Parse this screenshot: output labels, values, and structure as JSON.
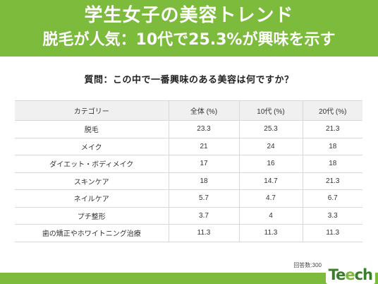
{
  "header": {
    "title": "学生女子の美容トレンド",
    "subtitle": "脱毛が人気：10代で25.3%が興味を示す"
  },
  "question": "質問：この中で一番興味のある美容は何ですか？",
  "chart_data": {
    "type": "table",
    "columns": [
      "カテゴリー",
      "全体 (%)",
      "10代 (%)",
      "20代 (%)"
    ],
    "rows": [
      [
        "脱毛",
        "23.3",
        "25.3",
        "21.3"
      ],
      [
        "メイク",
        "21",
        "24",
        "18"
      ],
      [
        "ダイエット・ボディメイク",
        "17",
        "16",
        "18"
      ],
      [
        "スキンケア",
        "18",
        "14.7",
        "21.3"
      ],
      [
        "ネイルケア",
        "5.7",
        "4.7",
        "6.7"
      ],
      [
        "プチ整形",
        "3.7",
        "4",
        "3.3"
      ],
      [
        "歯の矯正やホワイトニング治療",
        "11.3",
        "11.3",
        "11.3"
      ]
    ]
  },
  "footer": {
    "respondents": "回答数:300",
    "logo_part1": "Te",
    "logo_part2": "e",
    "logo_part3": "ch"
  },
  "colors": {
    "brand_green": "#7dbb3c",
    "header_row_bg": "#f0f0f0"
  }
}
